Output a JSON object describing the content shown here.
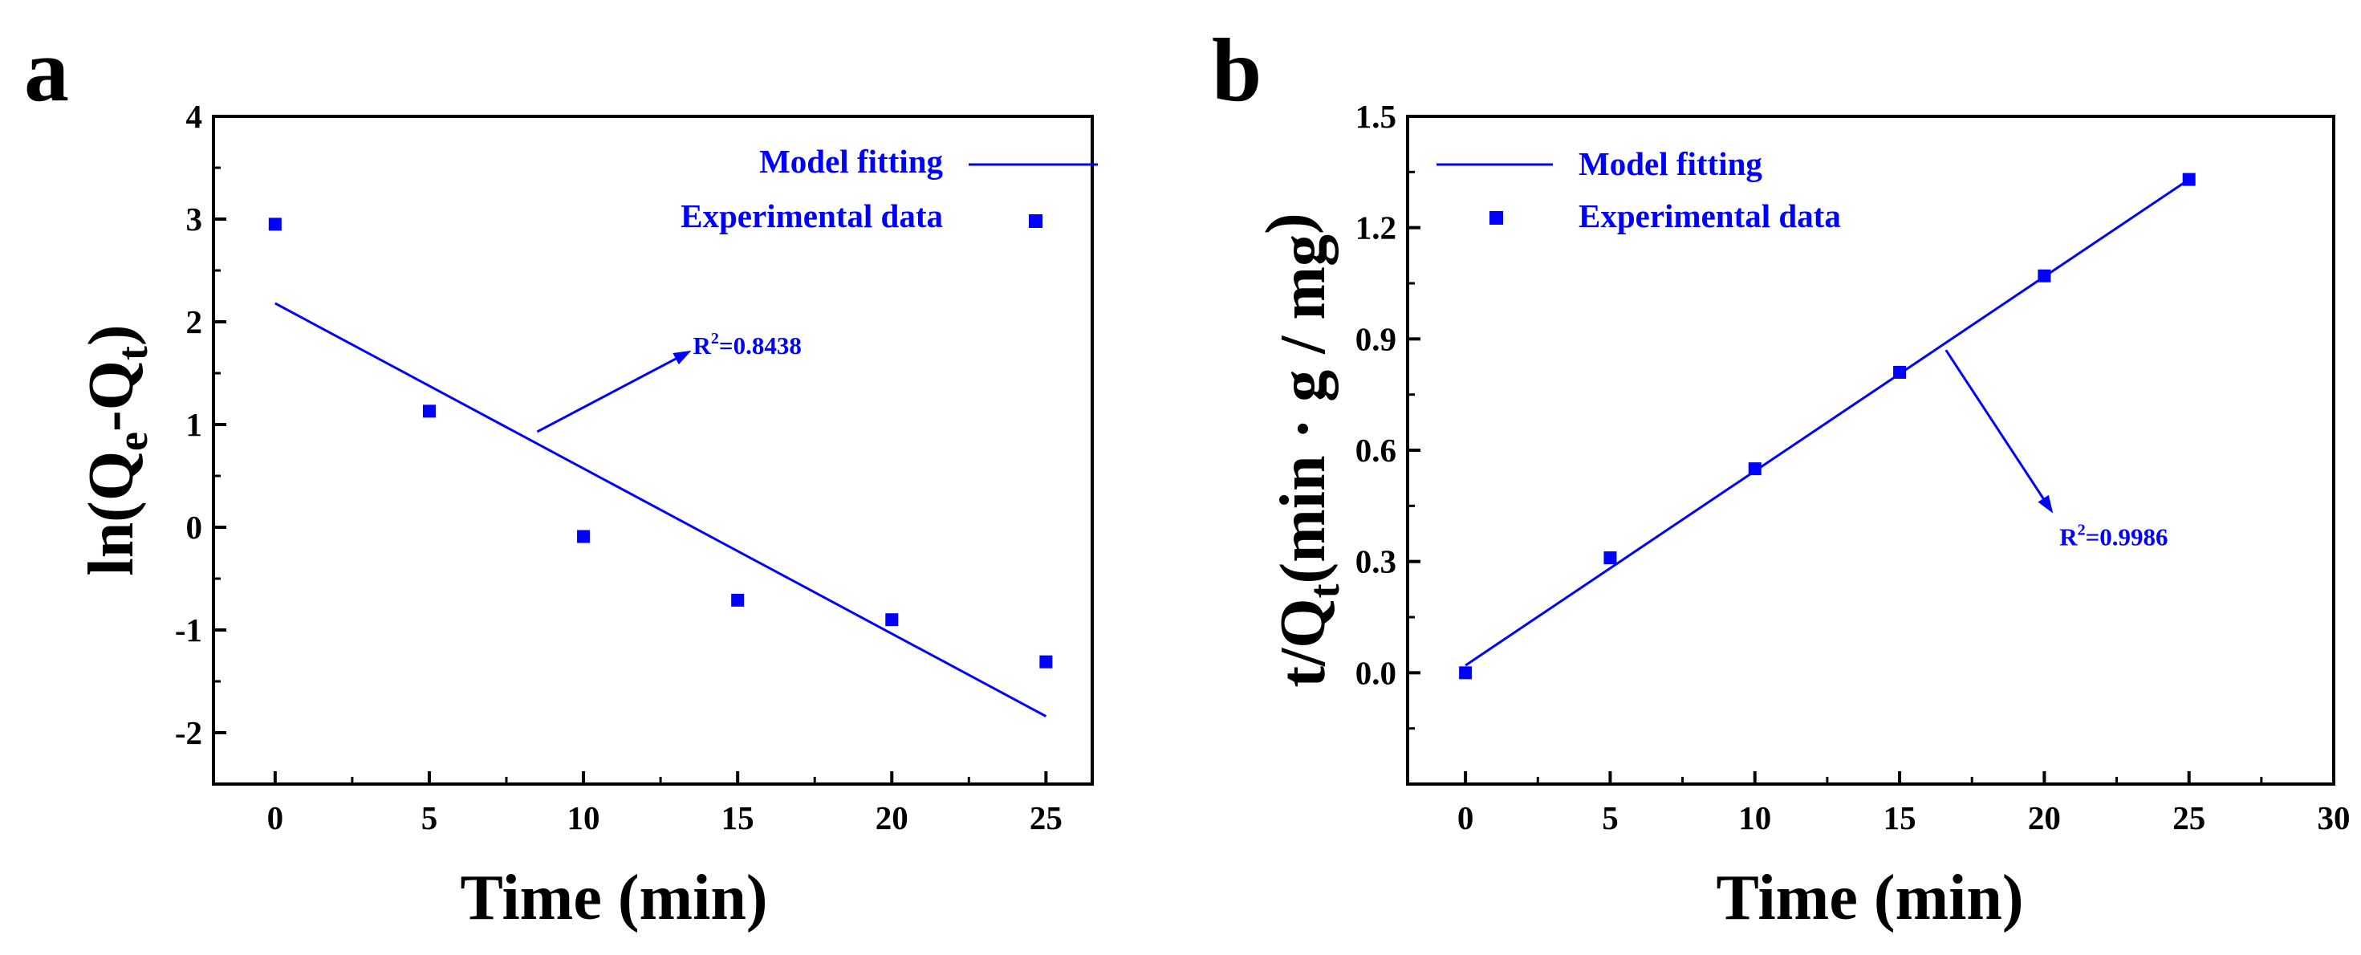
{
  "chart_data": [
    {
      "type": "scatter",
      "panel_label": "a",
      "xlabel": "Time (min)",
      "ylabel": {
        "base": "ln(Q",
        "sub1": "e",
        "mid": "-Q",
        "sub2": "t",
        "end": ")"
      },
      "xlim": [
        -2,
        26.5
      ],
      "ylim": [
        -2.5,
        4
      ],
      "xticks": [
        0,
        5,
        10,
        15,
        20,
        25
      ],
      "yticks": [
        -2,
        -1,
        0,
        1,
        2,
        3,
        4
      ],
      "grid": false,
      "legend": {
        "placement": "top-right",
        "fit_label": "Model fitting",
        "data_label": "Experimental data"
      },
      "series": [
        {
          "kind": "points",
          "x": [
            0,
            5,
            10,
            15,
            20,
            25
          ],
          "y": [
            2.95,
            1.13,
            -0.09,
            -0.71,
            -0.9,
            -1.31
          ]
        },
        {
          "kind": "fit_line",
          "x": [
            0,
            25
          ],
          "y": [
            2.18,
            -1.84
          ]
        }
      ],
      "annotation": {
        "base": "R",
        "sup": "2",
        "rest": "=0.8438",
        "arrow_from": [
          8.5,
          0.93
        ],
        "arrow_to": [
          13.5,
          1.72
        ]
      },
      "color": "#0000ff"
    },
    {
      "type": "scatter",
      "panel_label": "b",
      "xlabel": "Time (min)",
      "ylabel": {
        "base": "t/Q",
        "sub1": "t",
        "mid": "(min · g / mg",
        "sub2": "",
        "end": ")"
      },
      "xlim": [
        -2,
        30
      ],
      "ylim": [
        -0.3,
        1.5
      ],
      "xticks": [
        0,
        5,
        10,
        15,
        20,
        25,
        30
      ],
      "yticks": [
        0.0,
        0.3,
        0.6,
        0.9,
        1.2,
        1.5
      ],
      "ytick_labels": [
        "0.0",
        "0.3",
        "0.6",
        "0.9",
        "1.2",
        "1.5"
      ],
      "grid": false,
      "legend": {
        "placement": "top-left",
        "fit_label": "Model fitting",
        "data_label": "Experimental data"
      },
      "series": [
        {
          "kind": "points",
          "x": [
            0,
            5,
            10,
            15,
            20,
            25
          ],
          "y": [
            0.0,
            0.31,
            0.55,
            0.81,
            1.07,
            1.33
          ]
        },
        {
          "kind": "fit_line",
          "x": [
            0,
            25
          ],
          "y": [
            0.02,
            1.33
          ]
        }
      ],
      "annotation": {
        "base": "R",
        "sup": "2",
        "rest": "=0.9986",
        "arrow_from": [
          16.6,
          0.87
        ],
        "arrow_to": [
          20.3,
          0.43
        ]
      },
      "color": "#0000ff"
    }
  ]
}
